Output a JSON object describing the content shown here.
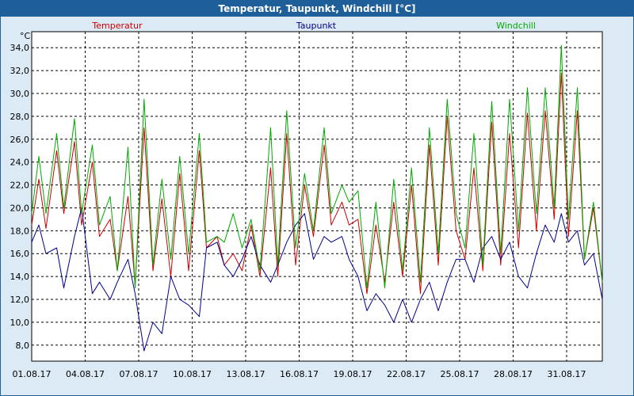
{
  "window": {
    "title": "Temperatur, Taupunkt, Windchill [°C]"
  },
  "colors": {
    "titlebar": "#1f5f99",
    "background": "#dceaf6",
    "temperature": "#cc0000",
    "dewpoint": "#00008b",
    "windchill": "#00aa00",
    "grid": "#000000"
  },
  "chart_data": {
    "type": "line",
    "title": "Temperatur, Taupunkt, Windchill [°C]",
    "ylabel": "°C",
    "ylim": [
      6.6,
      35.4
    ],
    "xlim": [
      1,
      32
    ],
    "y_ticks": [
      "8,0",
      "10,0",
      "12,0",
      "14,0",
      "16,0",
      "18,0",
      "20,0",
      "22,0",
      "24,0",
      "26,0",
      "28,0",
      "30,0",
      "32,0",
      "34,0"
    ],
    "x_ticks": [
      "01.08.17",
      "04.08.17",
      "07.08.17",
      "10.08.17",
      "13.08.17",
      "16.08.17",
      "19.08.17",
      "22.08.17",
      "25.08.17",
      "28.08.17",
      "31.08.17"
    ],
    "grid": true,
    "legend_placement": "top",
    "series": [
      {
        "name": "Temperatur",
        "color": "#cc0000",
        "points": [
          [
            1.0,
            18.5
          ],
          [
            1.4,
            22.5
          ],
          [
            1.8,
            18.2
          ],
          [
            2.4,
            25.0
          ],
          [
            2.8,
            19.5
          ],
          [
            3.4,
            25.8
          ],
          [
            3.8,
            18.5
          ],
          [
            4.4,
            24.0
          ],
          [
            4.8,
            17.5
          ],
          [
            5.4,
            19.0
          ],
          [
            5.8,
            14.5
          ],
          [
            6.4,
            21.0
          ],
          [
            6.8,
            13.2
          ],
          [
            7.3,
            27.0
          ],
          [
            7.8,
            14.5
          ],
          [
            8.3,
            20.8
          ],
          [
            8.8,
            14.0
          ],
          [
            9.3,
            23.0
          ],
          [
            9.8,
            14.5
          ],
          [
            10.4,
            25.0
          ],
          [
            10.8,
            16.5
          ],
          [
            11.4,
            17.5
          ],
          [
            11.8,
            15.0
          ],
          [
            12.3,
            16.0
          ],
          [
            12.8,
            14.5
          ],
          [
            13.3,
            18.5
          ],
          [
            13.8,
            14.0
          ],
          [
            14.4,
            23.5
          ],
          [
            14.8,
            14.0
          ],
          [
            15.3,
            26.5
          ],
          [
            15.8,
            15.0
          ],
          [
            16.3,
            22.0
          ],
          [
            16.8,
            17.5
          ],
          [
            17.4,
            25.5
          ],
          [
            17.8,
            18.5
          ],
          [
            18.4,
            20.5
          ],
          [
            18.8,
            18.5
          ],
          [
            19.3,
            19.0
          ],
          [
            19.8,
            12.5
          ],
          [
            20.3,
            18.5
          ],
          [
            20.8,
            13.5
          ],
          [
            21.3,
            20.5
          ],
          [
            21.8,
            14.0
          ],
          [
            22.3,
            22.0
          ],
          [
            22.8,
            12.5
          ],
          [
            23.3,
            25.5
          ],
          [
            23.8,
            15.0
          ],
          [
            24.3,
            28.0
          ],
          [
            24.8,
            18.0
          ],
          [
            25.3,
            15.5
          ],
          [
            25.8,
            23.5
          ],
          [
            26.3,
            14.5
          ],
          [
            26.8,
            27.5
          ],
          [
            27.3,
            15.0
          ],
          [
            27.8,
            26.5
          ],
          [
            28.3,
            16.5
          ],
          [
            28.8,
            28.3
          ],
          [
            29.3,
            18.0
          ],
          [
            29.8,
            28.5
          ],
          [
            30.3,
            19.0
          ],
          [
            30.7,
            31.8
          ],
          [
            31.1,
            17.5
          ],
          [
            31.6,
            28.5
          ],
          [
            32.0,
            15.5
          ],
          [
            32.5,
            20.0
          ],
          [
            33.0,
            13.5
          ]
        ]
      },
      {
        "name": "Taupunkt",
        "color": "#00008b",
        "points": [
          [
            1.0,
            17.0
          ],
          [
            1.4,
            18.5
          ],
          [
            1.8,
            16.0
          ],
          [
            2.4,
            16.5
          ],
          [
            2.8,
            13.0
          ],
          [
            3.4,
            17.5
          ],
          [
            3.8,
            20.0
          ],
          [
            4.4,
            12.5
          ],
          [
            4.8,
            13.5
          ],
          [
            5.4,
            12.0
          ],
          [
            5.8,
            13.5
          ],
          [
            6.4,
            15.5
          ],
          [
            6.8,
            12.5
          ],
          [
            7.3,
            7.5
          ],
          [
            7.8,
            10.0
          ],
          [
            8.3,
            9.0
          ],
          [
            8.8,
            14.0
          ],
          [
            9.3,
            12.0
          ],
          [
            9.8,
            11.5
          ],
          [
            10.4,
            10.5
          ],
          [
            10.8,
            16.5
          ],
          [
            11.4,
            17.0
          ],
          [
            11.8,
            15.0
          ],
          [
            12.3,
            14.0
          ],
          [
            12.8,
            15.5
          ],
          [
            13.3,
            17.5
          ],
          [
            13.8,
            15.0
          ],
          [
            14.4,
            13.5
          ],
          [
            14.8,
            15.0
          ],
          [
            15.3,
            17.0
          ],
          [
            15.8,
            18.5
          ],
          [
            16.3,
            19.5
          ],
          [
            16.8,
            15.5
          ],
          [
            17.4,
            17.5
          ],
          [
            17.8,
            17.0
          ],
          [
            18.4,
            17.5
          ],
          [
            18.8,
            15.5
          ],
          [
            19.3,
            14.0
          ],
          [
            19.8,
            11.0
          ],
          [
            20.3,
            12.5
          ],
          [
            20.8,
            11.5
          ],
          [
            21.3,
            10.0
          ],
          [
            21.8,
            12.0
          ],
          [
            22.3,
            10.0
          ],
          [
            22.8,
            12.0
          ],
          [
            23.3,
            13.5
          ],
          [
            23.8,
            11.0
          ],
          [
            24.3,
            13.5
          ],
          [
            24.8,
            15.5
          ],
          [
            25.3,
            15.5
          ],
          [
            25.8,
            13.5
          ],
          [
            26.3,
            16.5
          ],
          [
            26.8,
            17.5
          ],
          [
            27.3,
            15.5
          ],
          [
            27.8,
            17.0
          ],
          [
            28.3,
            14.0
          ],
          [
            28.8,
            13.0
          ],
          [
            29.3,
            16.0
          ],
          [
            29.8,
            18.5
          ],
          [
            30.3,
            17.0
          ],
          [
            30.7,
            19.5
          ],
          [
            31.1,
            17.0
          ],
          [
            31.6,
            18.0
          ],
          [
            32.0,
            15.0
          ],
          [
            32.5,
            16.0
          ],
          [
            33.0,
            12.0
          ]
        ]
      },
      {
        "name": "Windchill",
        "color": "#00aa00",
        "points": [
          [
            1.0,
            19.5
          ],
          [
            1.4,
            24.5
          ],
          [
            1.8,
            19.5
          ],
          [
            2.4,
            26.5
          ],
          [
            2.8,
            20.0
          ],
          [
            3.4,
            27.8
          ],
          [
            3.8,
            19.5
          ],
          [
            4.4,
            25.5
          ],
          [
            4.8,
            18.5
          ],
          [
            5.4,
            21.0
          ],
          [
            5.8,
            14.5
          ],
          [
            6.4,
            25.3
          ],
          [
            6.8,
            13.0
          ],
          [
            7.3,
            29.5
          ],
          [
            7.8,
            15.0
          ],
          [
            8.3,
            22.5
          ],
          [
            8.8,
            15.5
          ],
          [
            9.3,
            24.5
          ],
          [
            9.8,
            16.0
          ],
          [
            10.4,
            26.5
          ],
          [
            10.8,
            17.0
          ],
          [
            11.4,
            17.5
          ],
          [
            11.8,
            17.0
          ],
          [
            12.3,
            19.5
          ],
          [
            12.8,
            16.5
          ],
          [
            13.3,
            19.0
          ],
          [
            13.8,
            14.5
          ],
          [
            14.4,
            27.0
          ],
          [
            14.8,
            15.0
          ],
          [
            15.3,
            28.5
          ],
          [
            15.8,
            16.5
          ],
          [
            16.3,
            23.0
          ],
          [
            16.8,
            18.0
          ],
          [
            17.4,
            27.0
          ],
          [
            17.8,
            19.5
          ],
          [
            18.4,
            22.0
          ],
          [
            18.8,
            20.5
          ],
          [
            19.3,
            21.5
          ],
          [
            19.8,
            13.0
          ],
          [
            20.3,
            20.5
          ],
          [
            20.8,
            13.0
          ],
          [
            21.3,
            22.5
          ],
          [
            21.8,
            14.5
          ],
          [
            22.3,
            23.5
          ],
          [
            22.8,
            13.5
          ],
          [
            23.3,
            27.0
          ],
          [
            23.8,
            16.0
          ],
          [
            24.3,
            29.5
          ],
          [
            24.8,
            19.5
          ],
          [
            25.3,
            16.5
          ],
          [
            25.8,
            26.5
          ],
          [
            26.3,
            15.0
          ],
          [
            26.8,
            29.3
          ],
          [
            27.3,
            16.0
          ],
          [
            27.8,
            29.5
          ],
          [
            28.3,
            18.0
          ],
          [
            28.8,
            30.5
          ],
          [
            29.3,
            19.5
          ],
          [
            29.8,
            30.5
          ],
          [
            30.3,
            20.0
          ],
          [
            30.7,
            34.2
          ],
          [
            31.1,
            19.0
          ],
          [
            31.6,
            30.5
          ],
          [
            32.0,
            15.5
          ],
          [
            32.5,
            20.5
          ],
          [
            33.0,
            13.5
          ]
        ]
      }
    ]
  }
}
